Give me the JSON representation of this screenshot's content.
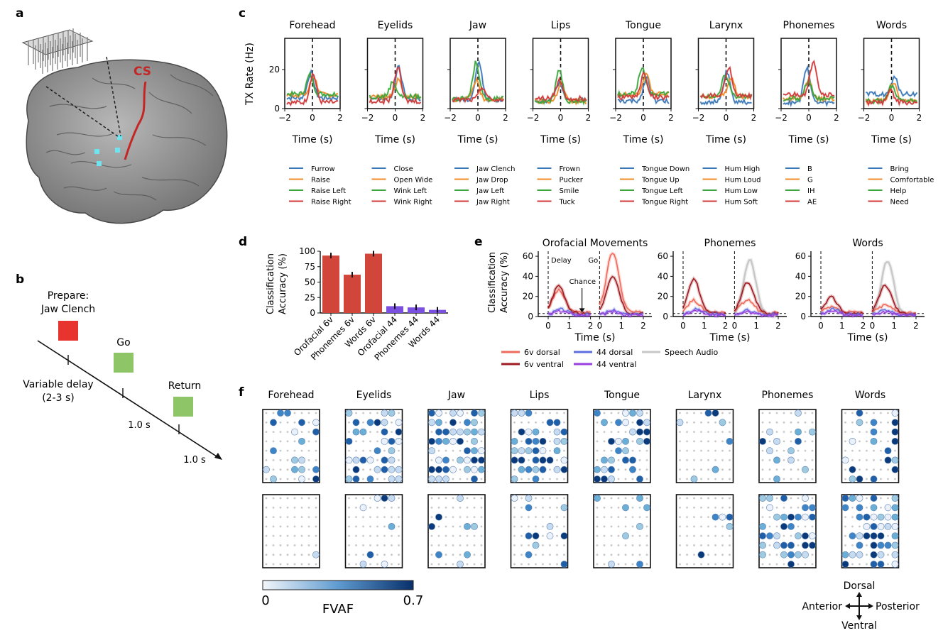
{
  "panel_letters": {
    "a": "a",
    "b": "b",
    "c": "c",
    "d": "d",
    "e": "e",
    "f": "f"
  },
  "panel_a": {
    "cs_label": "CS"
  },
  "panel_b": {
    "prepare_label": "Prepare:",
    "prepare_movement": "Jaw Clench",
    "go_label": "Go",
    "return_label": "Return",
    "delay_line1": "Variable delay",
    "delay_line2": "(2-3 s)",
    "dur1": "1.0 s",
    "dur2": "1.0 s",
    "colors": {
      "prepare": "#e8342e",
      "go": "#8ec566",
      "return": "#8ec566"
    }
  },
  "panel_c": {
    "ylabel": "TX Rate (Hz)",
    "xlabel": "Time (s)",
    "y_ticks": [
      "0",
      "20"
    ],
    "x_ticks": [
      "−2",
      "0",
      "2"
    ],
    "series_colors": [
      "#3a78b8",
      "#f08c28",
      "#3ca63c",
      "#d03a3a"
    ],
    "groups": [
      {
        "title": "Forehead",
        "legend": [
          "Furrow",
          "Raise",
          "Raise Left",
          "Raise Right"
        ]
      },
      {
        "title": "Eyelids",
        "legend": [
          "Close",
          "Open Wide",
          "Wink Left",
          "Wink Right"
        ]
      },
      {
        "title": "Jaw",
        "legend": [
          "Jaw Clench",
          "Jaw Drop",
          "Jaw Left",
          "Jaw Right"
        ]
      },
      {
        "title": "Lips",
        "legend": [
          "Frown",
          "Pucker",
          "Smile",
          "Tuck"
        ]
      },
      {
        "title": "Tongue",
        "legend": [
          "Tongue Down",
          "Tongue Up",
          "Tongue Left",
          "Tongue Right"
        ]
      },
      {
        "title": "Larynx",
        "legend": [
          "Hum High",
          "Hum Loud",
          "Hum Low",
          "Hum Soft"
        ]
      },
      {
        "title": "Phonemes",
        "legend": [
          "B",
          "G",
          "IH",
          "AE"
        ]
      },
      {
        "title": "Words",
        "legend": [
          "Bring",
          "Comfortable",
          "Help",
          "Need"
        ]
      }
    ]
  },
  "chart_data": [
    {
      "type": "bar",
      "panel": "d",
      "ylabel": "Classification Accuracy (%)",
      "ylim": [
        0,
        100
      ],
      "y_ticks": [
        "0",
        "25",
        "50",
        "75",
        "100"
      ],
      "categories": [
        "Orofacial 6v",
        "Phonemes 6v",
        "Words 6v",
        "Orofacial 44",
        "Phonemes 44",
        "Words 44"
      ],
      "values": [
        93,
        62,
        96,
        11,
        9,
        5
      ],
      "colors": [
        "#d2453a",
        "#d2453a",
        "#d2453a",
        "#7b4fe0",
        "#7b4fe0",
        "#7b4fe0"
      ]
    },
    {
      "type": "line",
      "panel": "e",
      "ylabel": "Classification Accuracy (%)",
      "xlabel": "Time (s)",
      "ylim": [
        0,
        65
      ],
      "y_ticks": [
        "0",
        "20",
        "40",
        "60"
      ],
      "x_ticks": [
        "0",
        "1",
        "2"
      ],
      "annotations": {
        "delay": "Delay",
        "go": "Go",
        "chance": "Chance"
      },
      "titles": [
        "Orofacial Movements",
        "Phonemes",
        "Words"
      ],
      "legend": [
        {
          "name": "6v dorsal",
          "color": "#ee6a5a"
        },
        {
          "name": "6v ventral",
          "color": "#9e1b22"
        },
        {
          "name": "44 dorsal",
          "color": "#5a6ee0"
        },
        {
          "name": "44 ventral",
          "color": "#9b3ee0"
        },
        {
          "name": "Speech Audio",
          "color": "#c8c8c8"
        }
      ]
    }
  ],
  "panel_f": {
    "titles": [
      "Forehead",
      "Eyelids",
      "Jaw",
      "Lips",
      "Tongue",
      "Larynx",
      "Phonemes",
      "Words"
    ],
    "colorbar_min": "0",
    "colorbar_max": "0.7",
    "colorbar_label": "FVAF",
    "compass": {
      "up": "Dorsal",
      "down": "Ventral",
      "left": "Anterior",
      "right": "Posterior"
    }
  }
}
